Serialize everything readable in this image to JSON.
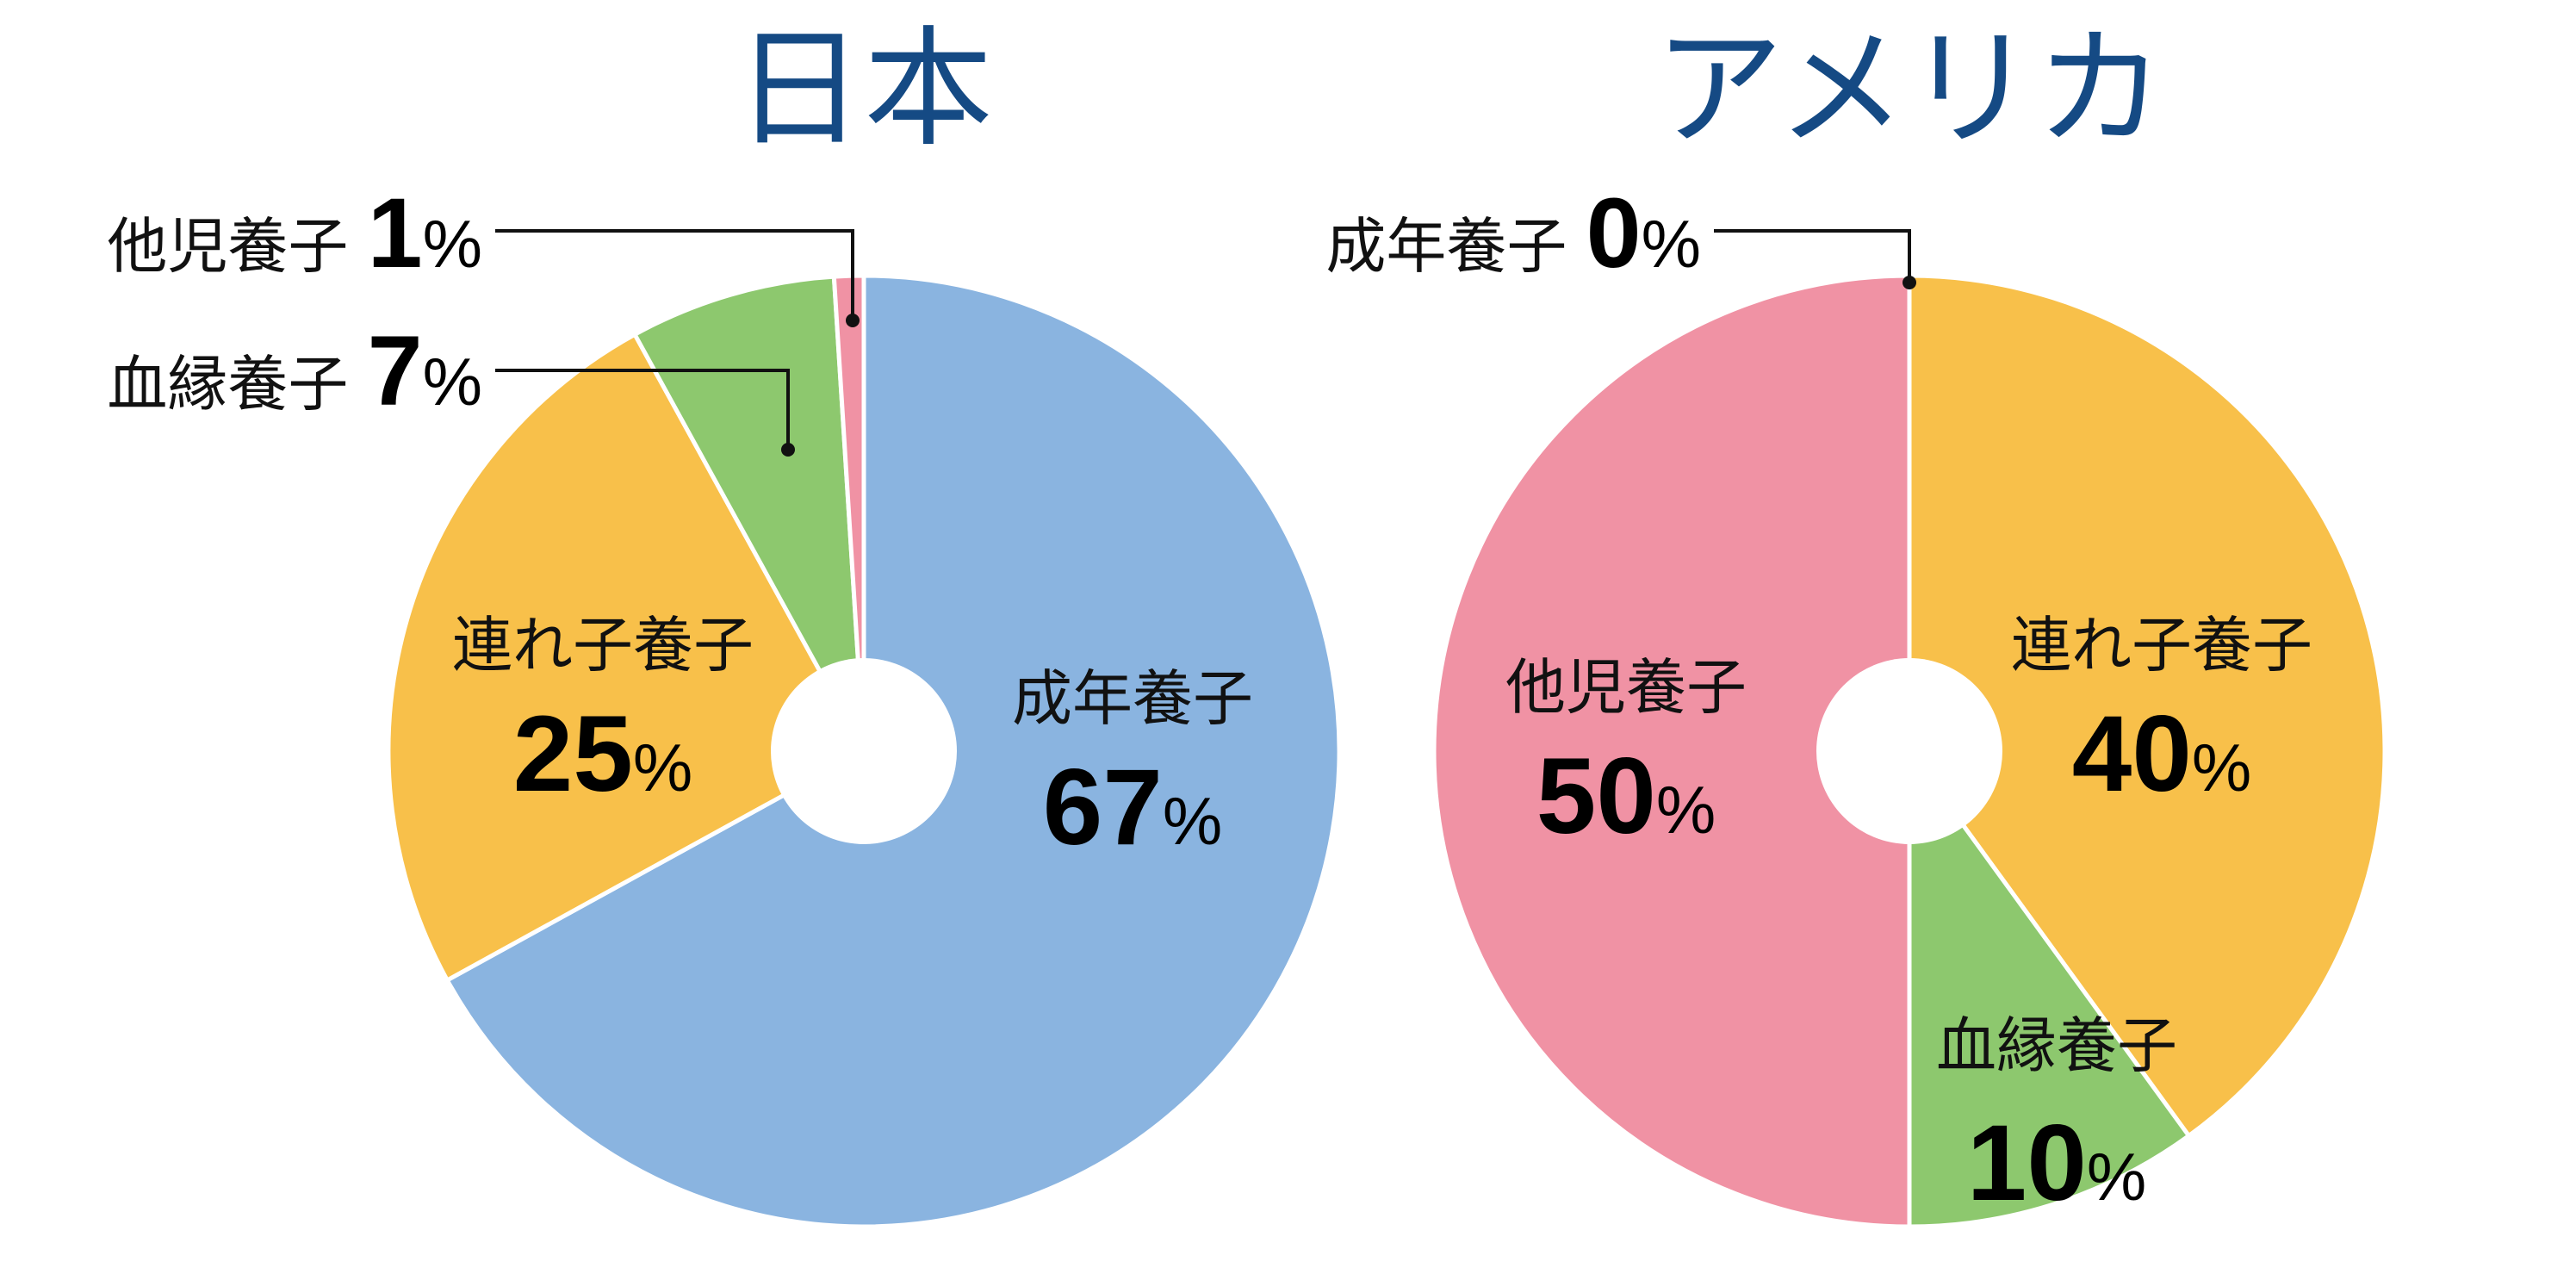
{
  "colors": {
    "title": "#154a84",
    "adult_adoption": "#8ab4e0",
    "stepchild_adoption": "#f8c04a",
    "relative_adoption": "#8dc86e",
    "nonrelative_adoption": "#f092a4",
    "separator": "#ffffff",
    "leader_line": "#111111"
  },
  "percent_sign": "%",
  "chart_data": [
    {
      "type": "pie",
      "title": "日本",
      "slices": [
        {
          "label": "成年養子",
          "value": 67,
          "color": "#8ab4e0"
        },
        {
          "label": "連れ子養子",
          "value": 25,
          "color": "#f8c04a"
        },
        {
          "label": "血縁養子",
          "value": 7,
          "color": "#8dc86e"
        },
        {
          "label": "他児養子",
          "value": 1,
          "color": "#f092a4"
        }
      ]
    },
    {
      "type": "pie",
      "title": "アメリカ",
      "slices": [
        {
          "label": "成年養子",
          "value": 0,
          "color": "#8ab4e0"
        },
        {
          "label": "連れ子養子",
          "value": 40,
          "color": "#f8c04a"
        },
        {
          "label": "血縁養子",
          "value": 10,
          "color": "#8dc86e"
        },
        {
          "label": "他児養子",
          "value": 50,
          "color": "#f092a4"
        }
      ]
    }
  ]
}
